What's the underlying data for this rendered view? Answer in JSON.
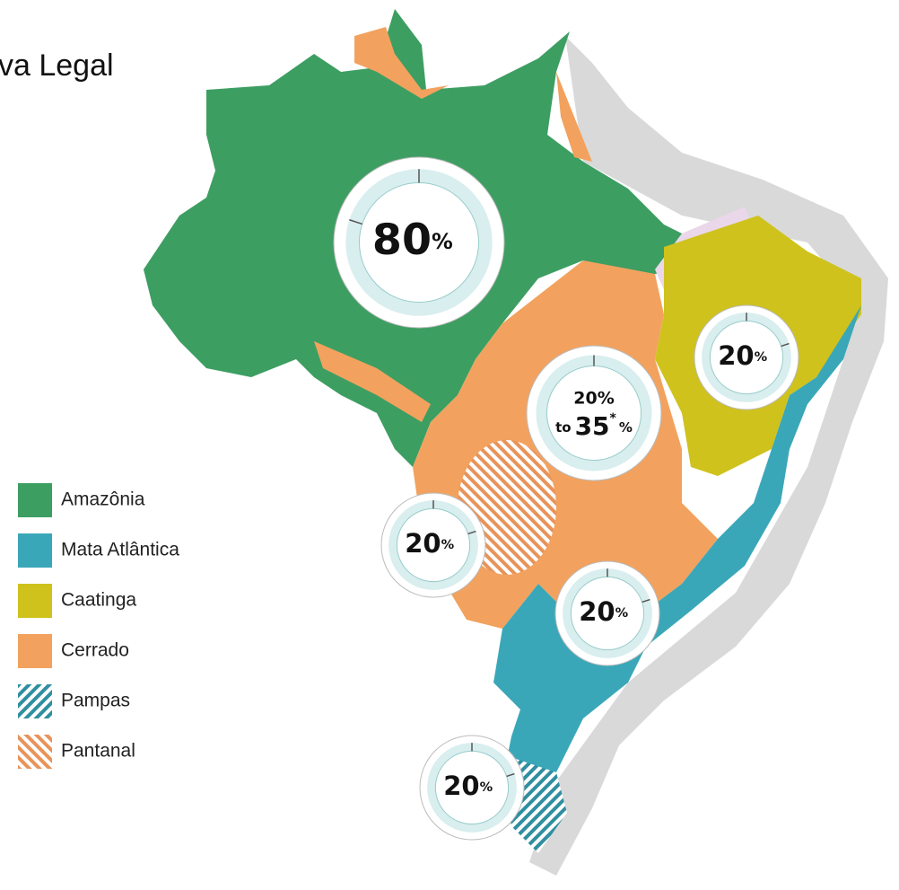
{
  "title": "va Legal",
  "legend": [
    {
      "label": "Amazônia",
      "color": "#3d9e62"
    },
    {
      "label": "Mata Atlântica",
      "color": "#3aa7b8"
    },
    {
      "label": "Caatinga",
      "color": "#cfc21d"
    },
    {
      "label": "Cerrado",
      "color": "#f2a25e"
    },
    {
      "label": "Pampas",
      "color": "#2f8fa0",
      "pattern": "hatch"
    },
    {
      "label": "Pantanal",
      "color": "#e8935a",
      "pattern": "hatch"
    }
  ],
  "badges": [
    {
      "value": 80,
      "unit": "%"
    },
    {
      "range_start": "20%",
      "connector": "to",
      "value": 35,
      "note": "*",
      "unit": "%"
    },
    {
      "value": 20,
      "unit": "%"
    },
    {
      "value": 20,
      "unit": "%"
    },
    {
      "value": 20,
      "unit": "%"
    },
    {
      "value": 20,
      "unit": "%"
    }
  ]
}
